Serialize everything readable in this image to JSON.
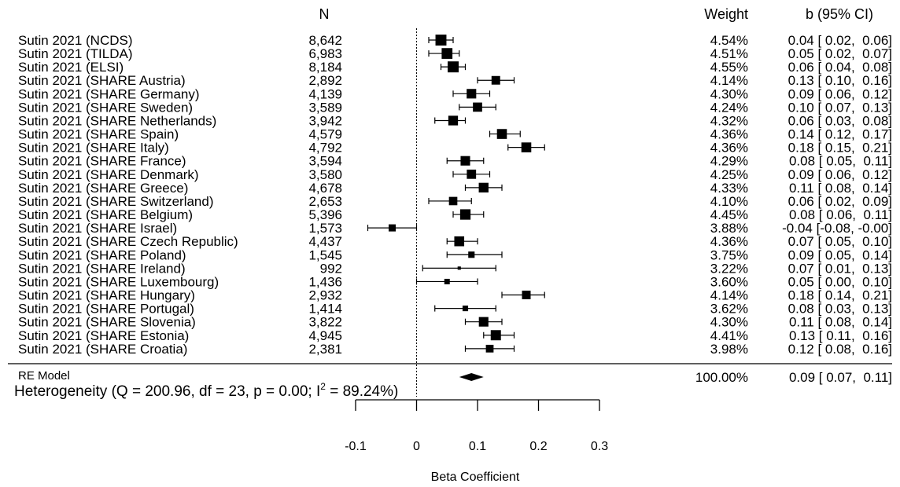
{
  "header": {
    "n_label": "N",
    "weight_label": "Weight",
    "ci_label": "b (95% CI)"
  },
  "chart_data": {
    "type": "forest",
    "title": "",
    "xlabel": "Beta Coefficient",
    "xlim": [
      -0.1,
      0.3
    ],
    "x_ticks": [
      -0.1,
      0,
      0.1,
      0.2,
      0.3
    ],
    "x_tick_labels": [
      "-0.1",
      "0",
      "0.1",
      "0.2",
      "0.3"
    ],
    "reference_line": 0,
    "studies": [
      {
        "label": "Sutin 2021 (NCDS)",
        "n": "8,642",
        "weight": "4.54%",
        "b": 0.04,
        "lo": 0.02,
        "hi": 0.06,
        "ci_text": "0.04 [ 0.02,  0.06]"
      },
      {
        "label": "Sutin 2021 (TILDA)",
        "n": "6,983",
        "weight": "4.51%",
        "b": 0.05,
        "lo": 0.02,
        "hi": 0.07,
        "ci_text": "0.05 [ 0.02,  0.07]"
      },
      {
        "label": "Sutin 2021 (ELSI)",
        "n": "8,184",
        "weight": "4.55%",
        "b": 0.06,
        "lo": 0.04,
        "hi": 0.08,
        "ci_text": "0.06 [ 0.04,  0.08]"
      },
      {
        "label": "Sutin 2021 (SHARE Austria)",
        "n": "2,892",
        "weight": "4.14%",
        "b": 0.13,
        "lo": 0.1,
        "hi": 0.16,
        "ci_text": "0.13 [ 0.10,  0.16]"
      },
      {
        "label": "Sutin 2021 (SHARE Germany)",
        "n": "4,139",
        "weight": "4.30%",
        "b": 0.09,
        "lo": 0.06,
        "hi": 0.12,
        "ci_text": "0.09 [ 0.06,  0.12]"
      },
      {
        "label": "Sutin 2021 (SHARE Sweden)",
        "n": "3,589",
        "weight": "4.24%",
        "b": 0.1,
        "lo": 0.07,
        "hi": 0.13,
        "ci_text": "0.10 [ 0.07,  0.13]"
      },
      {
        "label": "Sutin 2021 (SHARE Netherlands)",
        "n": "3,942",
        "weight": "4.32%",
        "b": 0.06,
        "lo": 0.03,
        "hi": 0.08,
        "ci_text": "0.06 [ 0.03,  0.08]"
      },
      {
        "label": "Sutin 2021 (SHARE Spain)",
        "n": "4,579",
        "weight": "4.36%",
        "b": 0.14,
        "lo": 0.12,
        "hi": 0.17,
        "ci_text": "0.14 [ 0.12,  0.17]"
      },
      {
        "label": "Sutin 2021 (SHARE Italy)",
        "n": "4,792",
        "weight": "4.36%",
        "b": 0.18,
        "lo": 0.15,
        "hi": 0.21,
        "ci_text": "0.18 [ 0.15,  0.21]"
      },
      {
        "label": "Sutin 2021 (SHARE France)",
        "n": "3,594",
        "weight": "4.29%",
        "b": 0.08,
        "lo": 0.05,
        "hi": 0.11,
        "ci_text": "0.08 [ 0.05,  0.11]"
      },
      {
        "label": "Sutin 2021 (SHARE Denmark)",
        "n": "3,580",
        "weight": "4.25%",
        "b": 0.09,
        "lo": 0.06,
        "hi": 0.12,
        "ci_text": "0.09 [ 0.06,  0.12]"
      },
      {
        "label": "Sutin 2021 (SHARE Greece)",
        "n": "4,678",
        "weight": "4.33%",
        "b": 0.11,
        "lo": 0.08,
        "hi": 0.14,
        "ci_text": "0.11 [ 0.08,  0.14]"
      },
      {
        "label": "Sutin 2021 (SHARE Switzerland)",
        "n": "2,653",
        "weight": "4.10%",
        "b": 0.06,
        "lo": 0.02,
        "hi": 0.09,
        "ci_text": "0.06 [ 0.02,  0.09]"
      },
      {
        "label": "Sutin 2021 (SHARE Belgium)",
        "n": "5,396",
        "weight": "4.45%",
        "b": 0.08,
        "lo": 0.06,
        "hi": 0.11,
        "ci_text": "0.08 [ 0.06,  0.11]"
      },
      {
        "label": "Sutin 2021 (SHARE Israel)",
        "n": "1,573",
        "weight": "3.88%",
        "b": -0.04,
        "lo": -0.08,
        "hi": -0.0,
        "ci_text": "-0.04 [-0.08, -0.00]"
      },
      {
        "label": "Sutin 2021 (SHARE Czech Republic)",
        "n": "4,437",
        "weight": "4.36%",
        "b": 0.07,
        "lo": 0.05,
        "hi": 0.1,
        "ci_text": "0.07 [ 0.05,  0.10]"
      },
      {
        "label": "Sutin 2021 (SHARE Poland)",
        "n": "1,545",
        "weight": "3.75%",
        "b": 0.09,
        "lo": 0.05,
        "hi": 0.14,
        "ci_text": "0.09 [ 0.05,  0.14]"
      },
      {
        "label": "Sutin 2021 (SHARE Ireland)",
        "n": "992",
        "weight": "3.22%",
        "b": 0.07,
        "lo": 0.01,
        "hi": 0.13,
        "ci_text": "0.07 [ 0.01,  0.13]"
      },
      {
        "label": "Sutin 2021 (SHARE Luxembourg)",
        "n": "1,436",
        "weight": "3.60%",
        "b": 0.05,
        "lo": 0.0,
        "hi": 0.1,
        "ci_text": "0.05 [ 0.00,  0.10]"
      },
      {
        "label": "Sutin 2021 (SHARE Hungary)",
        "n": "2,932",
        "weight": "4.14%",
        "b": 0.18,
        "lo": 0.14,
        "hi": 0.21,
        "ci_text": "0.18 [ 0.14,  0.21]"
      },
      {
        "label": "Sutin 2021 (SHARE Portugal)",
        "n": "1,414",
        "weight": "3.62%",
        "b": 0.08,
        "lo": 0.03,
        "hi": 0.13,
        "ci_text": "0.08 [ 0.03,  0.13]"
      },
      {
        "label": "Sutin 2021 (SHARE Slovenia)",
        "n": "3,822",
        "weight": "4.30%",
        "b": 0.11,
        "lo": 0.08,
        "hi": 0.14,
        "ci_text": "0.11 [ 0.08,  0.14]"
      },
      {
        "label": "Sutin 2021 (SHARE Estonia)",
        "n": "4,945",
        "weight": "4.41%",
        "b": 0.13,
        "lo": 0.11,
        "hi": 0.16,
        "ci_text": "0.13 [ 0.11,  0.16]"
      },
      {
        "label": "Sutin 2021 (SHARE Croatia)",
        "n": "2,381",
        "weight": "3.98%",
        "b": 0.12,
        "lo": 0.08,
        "hi": 0.16,
        "ci_text": "0.12 [ 0.08,  0.16]"
      }
    ],
    "summary": {
      "label": "RE Model",
      "weight": "100.00%",
      "b": 0.09,
      "lo": 0.07,
      "hi": 0.11,
      "ci_text": "0.09 [ 0.07,  0.11]",
      "heterogeneity_prefix": "Heterogeneity (Q = 200.96, df = 23, p = 0.00; I",
      "heterogeneity_sup": "2",
      "heterogeneity_suffix": " = 89.24%)"
    }
  }
}
